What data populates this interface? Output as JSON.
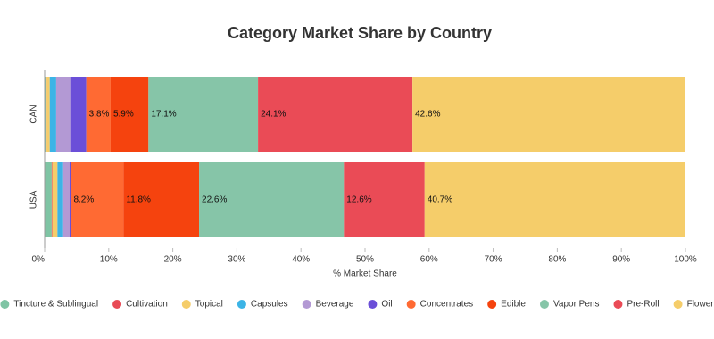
{
  "chart_data": {
    "type": "stacked-bar-horizontal",
    "title": "Category Market Share by Country",
    "x_label": "% Market Share",
    "categories": [
      "CAN",
      "USA"
    ],
    "xlim": [
      0,
      100
    ],
    "xticks": [
      {
        "value": 0,
        "label": "0%"
      },
      {
        "value": 10,
        "label": "10%"
      },
      {
        "value": 20,
        "label": "20%"
      },
      {
        "value": 30,
        "label": "30%"
      },
      {
        "value": 40,
        "label": "40%"
      },
      {
        "value": 50,
        "label": "50%"
      },
      {
        "value": 60,
        "label": "60%"
      },
      {
        "value": 70,
        "label": "70%"
      },
      {
        "value": 80,
        "label": "80%"
      },
      {
        "value": 90,
        "label": "90%"
      },
      {
        "value": 100,
        "label": "100%"
      }
    ],
    "series": [
      {
        "name": "Tincture & Sublingual",
        "color": "#7fc4a4",
        "values": [
          0.2,
          1.1
        ],
        "value_labels": [
          null,
          null
        ]
      },
      {
        "name": "Cultivation",
        "color": "#e84a55",
        "values": [
          0.1,
          0.1
        ],
        "value_labels": [
          null,
          null
        ]
      },
      {
        "name": "Topical",
        "color": "#f5cd6a",
        "values": [
          0.5,
          0.8
        ],
        "value_labels": [
          null,
          null
        ]
      },
      {
        "name": "Capsules",
        "color": "#3cb4e6",
        "values": [
          1.0,
          0.9
        ],
        "value_labels": [
          null,
          null
        ]
      },
      {
        "name": "Beverage",
        "color": "#b399d4",
        "values": [
          2.2,
          1.0
        ],
        "value_labels": [
          null,
          null
        ]
      },
      {
        "name": "Oil",
        "color": "#6b4fd8",
        "values": [
          2.5,
          0.2
        ],
        "value_labels": [
          null,
          null
        ]
      },
      {
        "name": "Concentrates",
        "color": "#ff6a33",
        "values": [
          3.8,
          8.2
        ],
        "value_labels": [
          "3.8%",
          "8.2%"
        ]
      },
      {
        "name": "Edible",
        "color": "#f5430e",
        "values": [
          5.9,
          11.8
        ],
        "value_labels": [
          "5.9%",
          "11.8%"
        ]
      },
      {
        "name": "Vapor Pens",
        "color": "#86c5a8",
        "values": [
          17.1,
          22.6
        ],
        "value_labels": [
          "17.1%",
          "22.6%"
        ]
      },
      {
        "name": "Pre-Roll",
        "color": "#ea4b56",
        "values": [
          24.1,
          12.6
        ],
        "value_labels": [
          "24.1%",
          "12.6%"
        ]
      },
      {
        "name": "Flower",
        "color": "#f5cd6a",
        "values": [
          42.6,
          40.7
        ],
        "value_labels": [
          "42.6%",
          "40.7%"
        ]
      }
    ]
  }
}
